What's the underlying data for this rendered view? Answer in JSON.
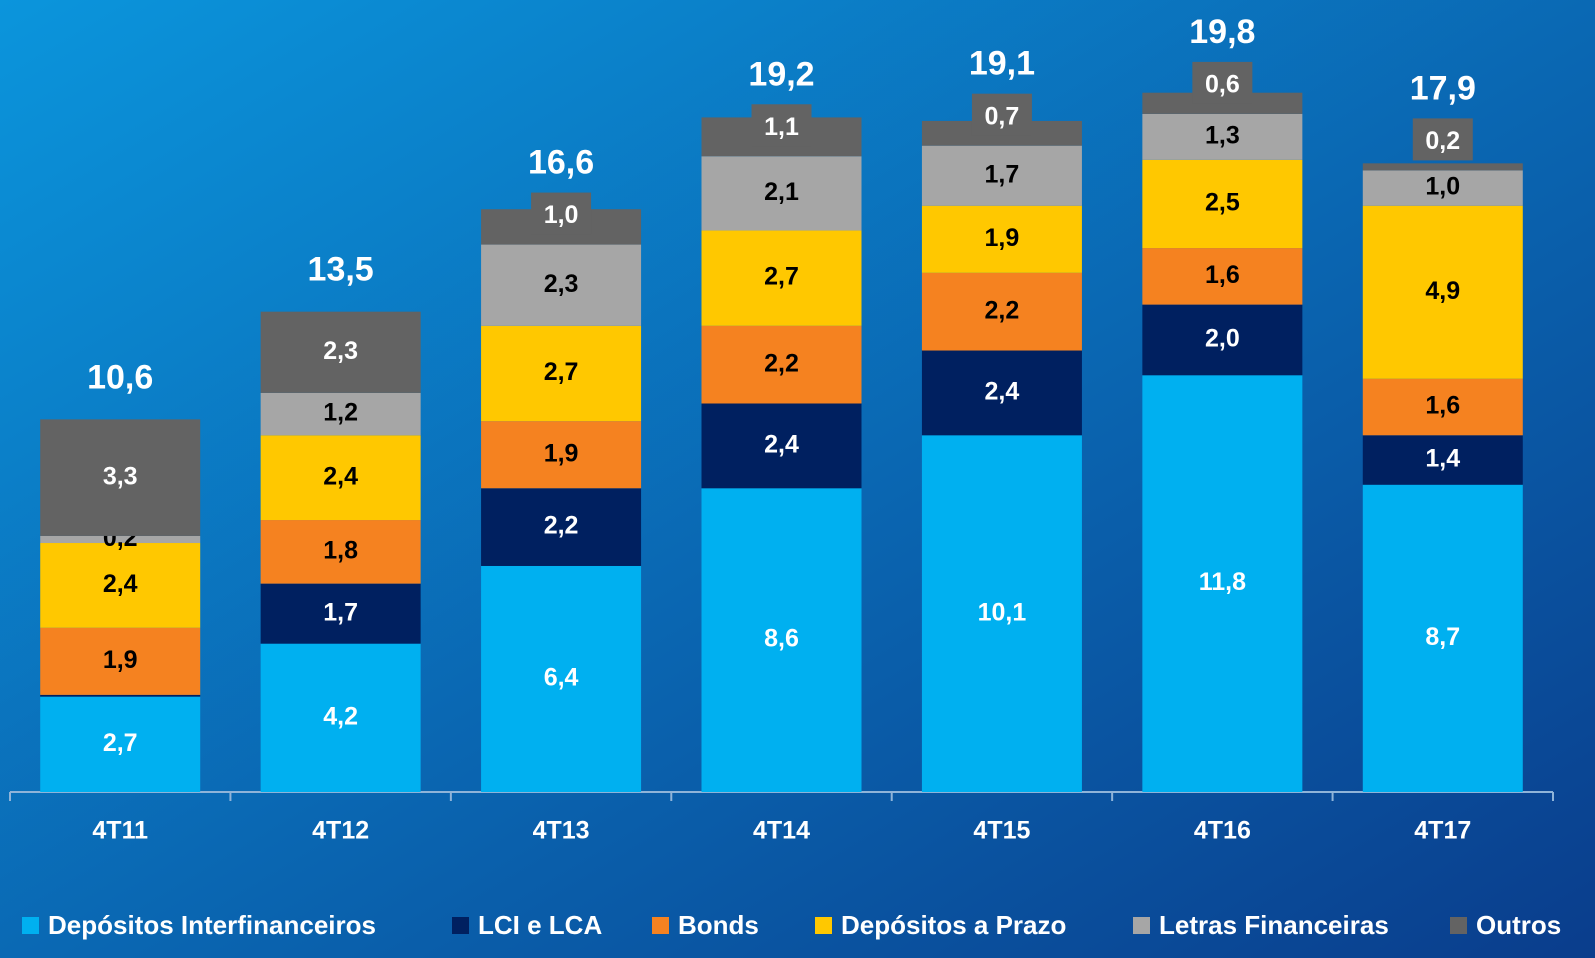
{
  "chart_data": {
    "type": "bar",
    "stacked": true,
    "categories": [
      "4T11",
      "4T12",
      "4T13",
      "4T14",
      "4T15",
      "4T16",
      "4T17"
    ],
    "series": [
      {
        "name": "Depósitos Interfinanceiros",
        "color": "#00b0f0",
        "values": [
          2.7,
          4.2,
          6.4,
          8.6,
          10.1,
          11.8,
          8.7
        ],
        "value_labels": [
          "2,7",
          "4,2",
          "6,4",
          "8,6",
          "10,1",
          "11,8",
          "8,7"
        ]
      },
      {
        "name": "LCI e LCA",
        "color": "#002060",
        "values": [
          0.05,
          1.7,
          2.2,
          2.4,
          2.4,
          2.0,
          1.4
        ],
        "value_labels": [
          null,
          "1,7",
          "2,2",
          "2,4",
          "2,4",
          "2,0",
          "1,4"
        ]
      },
      {
        "name": "Bonds",
        "color": "#f58220",
        "values": [
          1.9,
          1.8,
          1.9,
          2.2,
          2.2,
          1.6,
          1.6
        ],
        "value_labels": [
          "1,9",
          "1,8",
          "1,9",
          "2,2",
          "2,2",
          "1,6",
          "1,6"
        ]
      },
      {
        "name": "Depósitos a Prazo",
        "color": "#ffc800",
        "values": [
          2.4,
          2.4,
          2.7,
          2.7,
          1.9,
          2.5,
          4.9
        ],
        "value_labels": [
          "2,4",
          "2,4",
          "2,7",
          "2,7",
          "1,9",
          "2,5",
          "4,9"
        ]
      },
      {
        "name": "Letras Financeiras",
        "color": "#a6a6a6",
        "values": [
          0.2,
          1.2,
          2.3,
          2.1,
          1.7,
          1.3,
          1.0
        ],
        "value_labels": [
          "0,2",
          "1,2",
          "2,3",
          "2,1",
          "1,7",
          "1,3",
          "1,0"
        ]
      },
      {
        "name": "Outros",
        "color": "#636363",
        "values": [
          3.3,
          2.3,
          1.0,
          1.1,
          0.7,
          0.6,
          0.2
        ],
        "value_labels": [
          "3,3",
          "2,3",
          "1,0",
          "1,1",
          "0,7",
          "0,6",
          "0,2"
        ]
      }
    ],
    "totals": [
      10.6,
      13.5,
      16.6,
      19.2,
      19.1,
      19.8,
      17.9
    ],
    "total_labels": [
      "10,6",
      "13,5",
      "16,6",
      "19,2",
      "19,1",
      "19,8",
      "17,9"
    ],
    "ylim": [
      0,
      22
    ],
    "legend": "bottom"
  }
}
